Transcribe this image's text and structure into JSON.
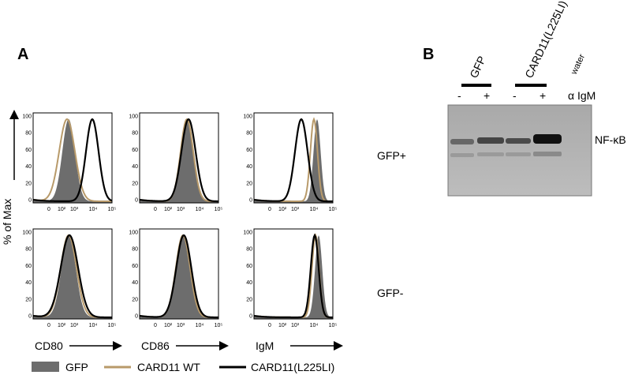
{
  "panel_a": {
    "label": "A",
    "y_axis_label": "% of Max",
    "y_ticks": [
      "0",
      "20",
      "40",
      "60",
      "80",
      "100"
    ],
    "x_ticks": [
      "0",
      "10²",
      "10³",
      "10⁴",
      "10⁵"
    ],
    "markers": [
      "CD80",
      "CD86",
      "IgM"
    ],
    "rows": [
      "GFP+",
      "GFP-"
    ],
    "legend": [
      "GFP",
      "CARD11 WT",
      "CARD11(L225LI)"
    ]
  },
  "panel_b": {
    "label": "B",
    "lanes": [
      "GFP",
      "CARD11(L225LI)",
      "water"
    ],
    "treatment_marks": [
      "-",
      "+",
      "-",
      "+"
    ],
    "treatment": "α IgM",
    "band": "NF-κB"
  }
}
